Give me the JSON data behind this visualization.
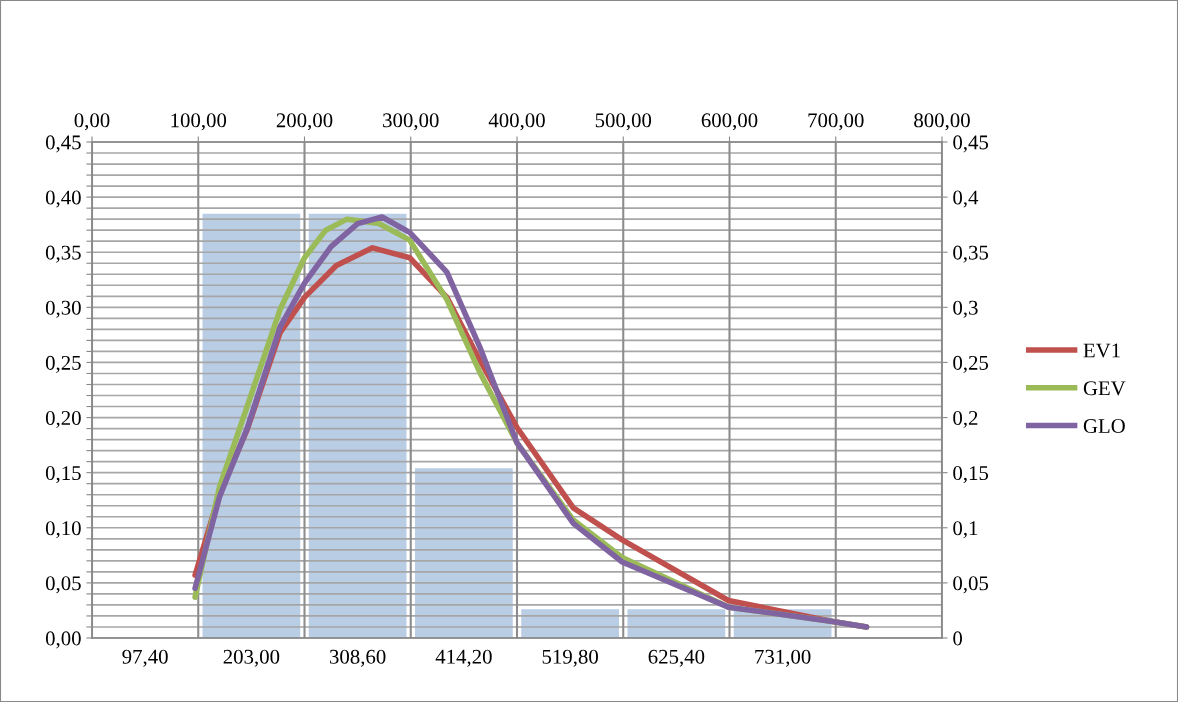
{
  "chart_data": {
    "type": "bar",
    "categories": [
      "97,40",
      "203,00",
      "308,60",
      "414,20",
      "519,80",
      "625,40",
      "731,00",
      null
    ],
    "series": [
      {
        "color": "#b9cde5",
        "values": [
          null,
          0.385,
          0.385,
          0.154,
          0.026,
          0.026,
          0.026,
          null
        ]
      },
      {
        "type": "line",
        "name": "EV1",
        "color": "#c0504d",
        "axis": "x2",
        "x": [
          97,
          120,
          146,
          177,
          200,
          230,
          264,
          299,
          334,
          365,
          400,
          453,
          499,
          599,
          697,
          729
        ],
        "values": [
          0.057,
          0.131,
          0.189,
          0.277,
          0.309,
          0.338,
          0.354,
          0.345,
          0.309,
          0.252,
          0.191,
          0.118,
          0.089,
          0.034,
          0.015,
          0.01
        ]
      },
      {
        "type": "line",
        "name": "GEV",
        "color": "#9bbb59",
        "axis": "x2",
        "x": [
          97,
          120,
          146,
          177,
          200,
          220,
          240,
          270,
          299,
          334,
          365,
          400,
          453,
          499,
          599,
          697,
          729
        ],
        "values": [
          0.037,
          0.137,
          0.21,
          0.298,
          0.345,
          0.37,
          0.38,
          0.376,
          0.361,
          0.307,
          0.241,
          0.177,
          0.107,
          0.073,
          0.028,
          0.015,
          0.01
        ]
      },
      {
        "type": "line",
        "name": "GLO",
        "color": "#8064a2",
        "axis": "x2",
        "x": [
          97,
          120,
          146,
          177,
          200,
          225,
          250,
          273,
          299,
          334,
          365,
          400,
          453,
          499,
          599,
          697,
          729
        ],
        "values": [
          0.045,
          0.128,
          0.19,
          0.282,
          0.322,
          0.355,
          0.376,
          0.382,
          0.368,
          0.332,
          0.264,
          0.177,
          0.104,
          0.069,
          0.028,
          0.015,
          0.01
        ]
      }
    ],
    "x2lim": [
      0,
      800
    ],
    "x2ticks": [
      {
        "value": 0,
        "label": "0,00"
      },
      {
        "value": 100,
        "label": "100,00"
      },
      {
        "value": 200,
        "label": "200,00"
      },
      {
        "value": 300,
        "label": "300,00"
      },
      {
        "value": 400,
        "label": "400,00"
      },
      {
        "value": 500,
        "label": "500,00"
      },
      {
        "value": 600,
        "label": "600,00"
      },
      {
        "value": 700,
        "label": "700,00"
      },
      {
        "value": 800,
        "label": "800,00"
      }
    ],
    "ylim": [
      0,
      0.45
    ],
    "yticks": [
      {
        "value": 0,
        "label": "0,00"
      },
      {
        "value": 0.01,
        "label": null
      },
      {
        "value": 0.02,
        "label": null
      },
      {
        "value": 0.03,
        "label": null
      },
      {
        "value": 0.04,
        "label": null
      },
      {
        "value": 0.05,
        "label": "0,05"
      },
      {
        "value": 0.06,
        "label": null
      },
      {
        "value": 0.07,
        "label": null
      },
      {
        "value": 0.08,
        "label": null
      },
      {
        "value": 0.09,
        "label": null
      },
      {
        "value": 0.1,
        "label": "0,10"
      },
      {
        "value": 0.11,
        "label": null
      },
      {
        "value": 0.12,
        "label": null
      },
      {
        "value": 0.13,
        "label": null
      },
      {
        "value": 0.14,
        "label": null
      },
      {
        "value": 0.15,
        "label": "0,15"
      },
      {
        "value": 0.16,
        "label": null
      },
      {
        "value": 0.17,
        "label": null
      },
      {
        "value": 0.18,
        "label": null
      },
      {
        "value": 0.19,
        "label": null
      },
      {
        "value": 0.2,
        "label": "0,20"
      },
      {
        "value": 0.21,
        "label": null
      },
      {
        "value": 0.22,
        "label": null
      },
      {
        "value": 0.23,
        "label": null
      },
      {
        "value": 0.24,
        "label": null
      },
      {
        "value": 0.25,
        "label": "0,25"
      },
      {
        "value": 0.26,
        "label": null
      },
      {
        "value": 0.27,
        "label": null
      },
      {
        "value": 0.28,
        "label": null
      },
      {
        "value": 0.29,
        "label": null
      },
      {
        "value": 0.3,
        "label": "0,30"
      },
      {
        "value": 0.31,
        "label": null
      },
      {
        "value": 0.32,
        "label": null
      },
      {
        "value": 0.33,
        "label": null
      },
      {
        "value": 0.34,
        "label": null
      },
      {
        "value": 0.35,
        "label": "0,35"
      },
      {
        "value": 0.36,
        "label": null
      },
      {
        "value": 0.37,
        "label": null
      },
      {
        "value": 0.38,
        "label": null
      },
      {
        "value": 0.39,
        "label": null
      },
      {
        "value": 0.4,
        "label": "0,40"
      },
      {
        "value": 0.41,
        "label": null
      },
      {
        "value": 0.42,
        "label": null
      },
      {
        "value": 0.43,
        "label": null
      },
      {
        "value": 0.44,
        "label": null
      },
      {
        "value": 0.45,
        "label": "0,45"
      }
    ],
    "y2lim": [
      0,
      0.45
    ],
    "y2ticks": [
      {
        "value": 0,
        "label": "0"
      },
      {
        "value": 0.05,
        "label": "0,05"
      },
      {
        "value": 0.1,
        "label": "0,1"
      },
      {
        "value": 0.15,
        "label": "0,15"
      },
      {
        "value": 0.2,
        "label": "0,2"
      },
      {
        "value": 0.25,
        "label": "0,25"
      },
      {
        "value": 0.3,
        "label": "0,3"
      },
      {
        "value": 0.35,
        "label": "0,35"
      },
      {
        "value": 0.4,
        "label": "0,4"
      },
      {
        "value": 0.45,
        "label": "0,45"
      }
    ],
    "grid": true,
    "legend": "right"
  }
}
